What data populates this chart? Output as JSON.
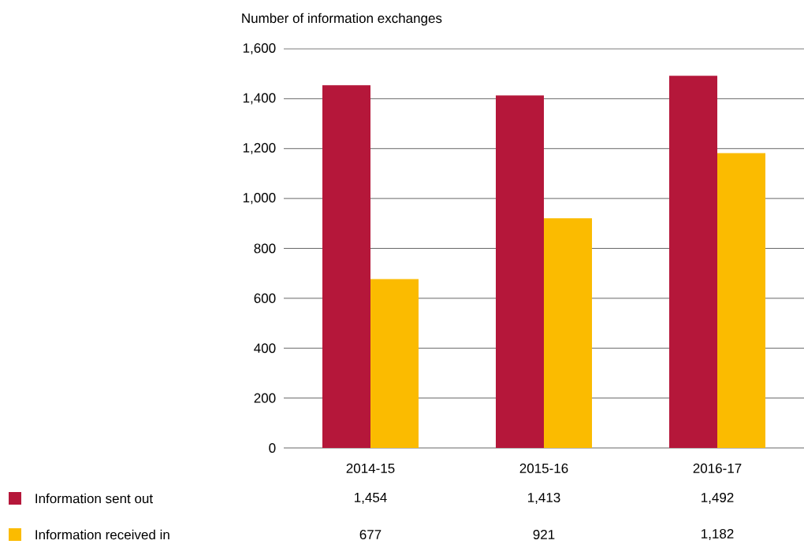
{
  "chart_data": {
    "type": "bar",
    "ylabel": "Number of information exchanges",
    "categories": [
      "2014-15",
      "2015-16",
      "2016-17"
    ],
    "series": [
      {
        "name": "Information sent out",
        "color": "#b5173a",
        "values": [
          1454,
          1413,
          1492
        ],
        "value_labels": [
          "1,454",
          "1,413",
          "1,492"
        ]
      },
      {
        "name": "Information received in",
        "color": "#fbbb00",
        "values": [
          677,
          921,
          1182
        ],
        "value_labels": [
          "677",
          "921",
          "1,182"
        ]
      }
    ],
    "ylim": [
      0,
      1600
    ],
    "yticks": [
      0,
      200,
      400,
      600,
      800,
      {
        "value": 1000,
        "label": "1,000"
      },
      {
        "value": 1200,
        "label": "1,200"
      },
      {
        "value": 1400,
        "label": "1,400"
      },
      {
        "value": 1600,
        "label": "1,600"
      }
    ],
    "grid": "y",
    "legend": "bottom"
  }
}
